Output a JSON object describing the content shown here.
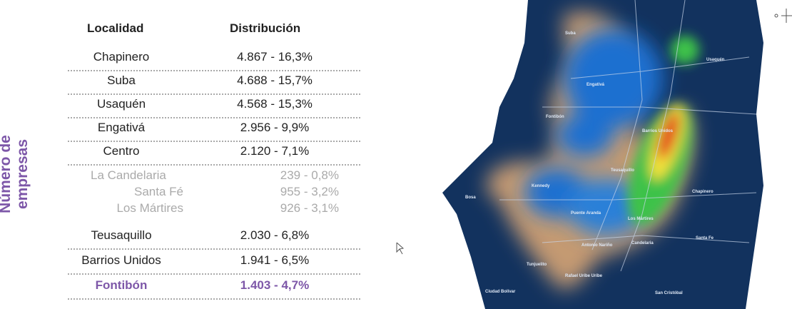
{
  "side_label": "Número de empresas",
  "table": {
    "headers": [
      "Localidad",
      "Distribución"
    ],
    "rows": [
      [
        "Chapinero",
        "4.867  -  16,3%"
      ],
      [
        "Suba",
        "4.688  -  15,7%"
      ],
      [
        "Usaquén",
        "4.568  -  15,3%"
      ],
      [
        "Engativá",
        "2.956  -  9,9%"
      ],
      [
        "Centro",
        "2.120  -  7,1%"
      ],
      [
        "La Candelaria",
        "239  -  0,8%"
      ],
      [
        "Santa Fé",
        "955  -  3,2%"
      ],
      [
        "Los Mártires",
        "926  -  3,1%"
      ],
      [
        "Teusaquillo",
        "2.030  -  6,8%"
      ],
      [
        "Barrios Unidos",
        "1.941  -  6,5%"
      ],
      [
        "Fontibón",
        "1.403  -  4,7%"
      ]
    ]
  },
  "map": {
    "labels": [
      "Suba",
      "Usaquén",
      "Engativá",
      "Fontibón",
      "Barrios Unidos",
      "Teusaquillo",
      "Kennedy",
      "Bosa",
      "Puente Aranda",
      "Los Mártires",
      "Chapinero",
      "Santa Fe",
      "Antonio Nariño",
      "Candelaria",
      "Tunjuelito",
      "Rafael Uribe Uribe",
      "Ciudad Bolívar",
      "San Cristóbal"
    ]
  }
}
